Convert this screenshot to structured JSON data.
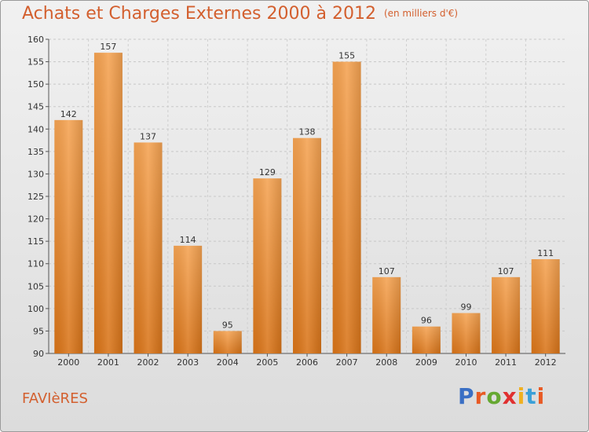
{
  "header": {
    "title": "Achats et Charges Externes 2000 à 2012",
    "unit": "(en milliers d'€)"
  },
  "footer": {
    "commune": "FAVIèRES",
    "logo": "Proxiti",
    "logo_colors": [
      "#3a6fc4",
      "#e85a24",
      "#66a832",
      "#e03030",
      "#f0b020",
      "#3aa0d8",
      "#e85a24"
    ]
  },
  "chart_data": {
    "type": "bar",
    "categories": [
      "2000",
      "2001",
      "2002",
      "2003",
      "2004",
      "2005",
      "2006",
      "2007",
      "2008",
      "2009",
      "2010",
      "2011",
      "2012"
    ],
    "values": [
      142,
      157,
      137,
      114,
      95,
      129,
      138,
      155,
      107,
      96,
      99,
      107,
      111
    ],
    "ylim": [
      90,
      160
    ],
    "yticks": [
      90,
      95,
      100,
      105,
      110,
      115,
      120,
      125,
      130,
      135,
      140,
      145,
      150,
      155,
      160
    ],
    "bar_color": "#f0973a",
    "grid": "horizontal dashed"
  }
}
